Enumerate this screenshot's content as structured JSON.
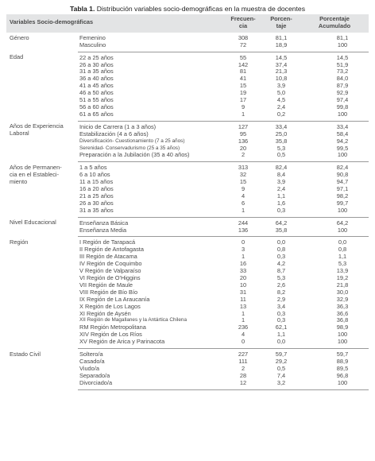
{
  "title": {
    "prefix": "Tabla 1.",
    "text": "Distribución variables socio-demográficas en la muestra de docentes"
  },
  "headers": {
    "variable": "Variables Socio-demográficas",
    "frequency": "Frecuen-\ncia",
    "percentage": "Porcen-\ntaje",
    "cumulative": "Porcentaje\nAcumulado"
  },
  "groups": [
    {
      "label": "Género",
      "rows": [
        {
          "cat": "Femenino",
          "freq": "308",
          "pct": "81,1",
          "cum": "81,1"
        },
        {
          "cat": "Masculino",
          "freq": "72",
          "pct": "18,9",
          "cum": "100"
        }
      ]
    },
    {
      "label": "Edad",
      "rows": [
        {
          "cat": "22 a 25 años",
          "freq": "55",
          "pct": "14,5",
          "cum": "14,5"
        },
        {
          "cat": "26 a 30 años",
          "freq": "142",
          "pct": "37,4",
          "cum": "51,9"
        },
        {
          "cat": "31 a 35 años",
          "freq": "81",
          "pct": "21,3",
          "cum": "73,2"
        },
        {
          "cat": "36 a 40 años",
          "freq": "41",
          "pct": "10,8",
          "cum": "84,0"
        },
        {
          "cat": "41 a 45 años",
          "freq": "15",
          "pct": "3,9",
          "cum": "87,9"
        },
        {
          "cat": "46 a 50 años",
          "freq": "19",
          "pct": "5,0",
          "cum": "92,9"
        },
        {
          "cat": "51 a 55 años",
          "freq": "17",
          "pct": "4,5",
          "cum": "97,4"
        },
        {
          "cat": "56 a 60 años",
          "freq": "9",
          "pct": "2,4",
          "cum": "99,8"
        },
        {
          "cat": "61 a 65 años",
          "freq": "1",
          "pct": "0,2",
          "cum": "100"
        }
      ]
    },
    {
      "label": "Años de Experiencia\nLaboral",
      "rows": [
        {
          "cat": "Inicio de Carrera (1 a 3 años)",
          "freq": "127",
          "pct": "33,4",
          "cum": "33,4"
        },
        {
          "cat": "Estabilización (4 a 6 años)",
          "freq": "95",
          "pct": "25,0",
          "cum": "58,4"
        },
        {
          "cat": "Diversificación- Cuestionamiento (7 a 25 años)",
          "freq": "136",
          "pct": "35,8",
          "cum": "94,2",
          "small": true
        },
        {
          "cat": "Serenidad- Conservadurismo (25 a 35 años)",
          "freq": "20",
          "pct": "5,3",
          "cum": "99,5",
          "small": true
        },
        {
          "cat": "Preparación a la Jubilación (35 a 40 años)",
          "freq": "2",
          "pct": "0,5",
          "cum": "100"
        }
      ]
    },
    {
      "label": "Años de Permanen-\ncia en el Estableci-\nmiento",
      "rows": [
        {
          "cat": "1 a 5 años",
          "freq": "313",
          "pct": "82,4",
          "cum": "82,4"
        },
        {
          "cat": "6 a 10 años",
          "freq": "32",
          "pct": "8,4",
          "cum": "90,8"
        },
        {
          "cat": "11 a 15 años",
          "freq": "15",
          "pct": "3,9",
          "cum": "94,7"
        },
        {
          "cat": "16 a 20 años",
          "freq": "9",
          "pct": "2,4",
          "cum": "97,1"
        },
        {
          "cat": "21 a 25 años",
          "freq": "4",
          "pct": "1,1",
          "cum": "98,2"
        },
        {
          "cat": "26 a 30 años",
          "freq": "6",
          "pct": "1,6",
          "cum": "99,7"
        },
        {
          "cat": "31 a 35 años",
          "freq": "1",
          "pct": "0,3",
          "cum": "100"
        }
      ]
    },
    {
      "label": "Nivel Educacional",
      "rows": [
        {
          "cat": "Enseñanza Básica",
          "freq": "244",
          "pct": "64,2",
          "cum": "64,2"
        },
        {
          "cat": "Enseñanza Media",
          "freq": "136",
          "pct": "35,8",
          "cum": "100"
        }
      ]
    },
    {
      "label": "Región",
      "rows": [
        {
          "cat": "I Región de Tarapacá",
          "freq": "0",
          "pct": "0,0",
          "cum": "0,0"
        },
        {
          "cat": "II Región de Antofagasta",
          "freq": "3",
          "pct": "0,8",
          "cum": "0,8"
        },
        {
          "cat": "III Región de Atacama",
          "freq": "1",
          "pct": "0,3",
          "cum": "1,1"
        },
        {
          "cat": "IV Región de Coquimbo",
          "freq": "16",
          "pct": "4,2",
          "cum": "5,3"
        },
        {
          "cat": "V Región de Valparaíso",
          "freq": "33",
          "pct": "8,7",
          "cum": "13,9"
        },
        {
          "cat": "VI Región de O'Higgins",
          "freq": "20",
          "pct": "5,3",
          "cum": "19,2"
        },
        {
          "cat": "VII Región de Maule",
          "freq": "10",
          "pct": "2,6",
          "cum": "21,8"
        },
        {
          "cat": "VIII Región de Bío Bío",
          "freq": "31",
          "pct": "8,2",
          "cum": "30,0"
        },
        {
          "cat": "IX Región de La Araucanía",
          "freq": "11",
          "pct": "2,9",
          "cum": "32,9"
        },
        {
          "cat": "X Región de Los Lagos",
          "freq": "13",
          "pct": "3,4",
          "cum": "36,3"
        },
        {
          "cat": "XI Región de Aysén",
          "freq": "1",
          "pct": "0,3",
          "cum": "36,6"
        },
        {
          "cat": "XII Región de Magallanes y la Antártica Chilena",
          "freq": "1",
          "pct": "0,3",
          "cum": "36,8",
          "small": true
        },
        {
          "cat": "RM Región Metropolitana",
          "freq": "236",
          "pct": "62,1",
          "cum": "98,9"
        },
        {
          "cat": "XIV Región de Los Ríos",
          "freq": "4",
          "pct": "1,1",
          "cum": "100"
        },
        {
          "cat": "XV Región de Arica y Parinacota",
          "freq": "0",
          "pct": "0,0",
          "cum": "100"
        }
      ]
    },
    {
      "label": "Estado Civil",
      "rows": [
        {
          "cat": "Soltero/a",
          "freq": "227",
          "pct": "59,7",
          "cum": "59,7"
        },
        {
          "cat": "Casado/a",
          "freq": "111",
          "pct": "29,2",
          "cum": "88,9"
        },
        {
          "cat": "Viudo/a",
          "freq": "2",
          "pct": "0,5",
          "cum": "89,5"
        },
        {
          "cat": "Separado/a",
          "freq": "28",
          "pct": "7,4",
          "cum": "96,8"
        },
        {
          "cat": "Divorciado/a",
          "freq": "12",
          "pct": "3,2",
          "cum": "100"
        }
      ]
    }
  ]
}
